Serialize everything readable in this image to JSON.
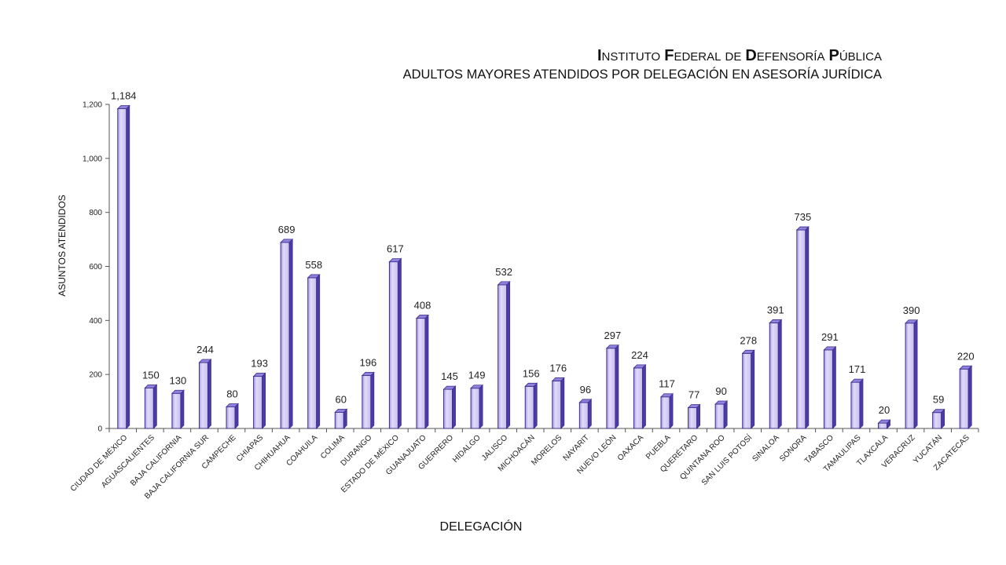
{
  "title_parts": [
    {
      "initial": "I",
      "rest": "NSTITUTO"
    },
    {
      "initial": "F",
      "rest": "EDERAL"
    },
    {
      "initial": "",
      "rest": "DE"
    },
    {
      "initial": "D",
      "rest": "EFENSORÍA"
    },
    {
      "initial": "P",
      "rest": "ÚBLICA"
    }
  ],
  "subtitle": "ADULTOS MAYORES ATENDIDOS POR DELEGACIÓN EN ASESORÍA JURÍDICA",
  "colors": {
    "bar_fill_light": "#d8d0f4",
    "bar_fill_dark": "#9a8fe0",
    "bar_side": "#4c3ba6",
    "bar_top": "#8f82dd",
    "bar_stroke": "#3d2f8f",
    "axis": "#555555"
  },
  "chart_data": {
    "type": "bar",
    "title": "INSTITUTO FEDERAL DE DEFENSORÍA PÚBLICA",
    "subtitle": "ADULTOS MAYORES ATENDIDOS POR DELEGACIÓN EN ASESORÍA JURÍDICA",
    "xlabel": "DELEGACIÓN",
    "ylabel": "ASUNTOS ATENDIDOS",
    "ylim": [
      0,
      1200
    ],
    "yticks": [
      0,
      200,
      400,
      600,
      800,
      1000,
      1200
    ],
    "ytick_labels": [
      "0",
      "200",
      "400",
      "600",
      "800",
      "1,000",
      "1,200"
    ],
    "grid": false,
    "categories": [
      "CIUDAD DE MÉXICO",
      "AGUASCALIENTES",
      "BAJA CALIFORNIA",
      "BAJA CALIFORNIA SUR",
      "CAMPECHE",
      "CHIAPAS",
      "CHIHUAHUA",
      "COAHUILA",
      "COLIMA",
      "DURANGO",
      "ESTADO DE MÉXICO",
      "GUANAJUATO",
      "GUERRERO",
      "HIDALGO",
      "JALISCO",
      "MICHOACÁN",
      "MORELOS",
      "NAYARIT",
      "NUEVO LEÓN",
      "OAXACA",
      "PUEBLA",
      "QUERÉTARO",
      "QUINTANA ROO",
      "SAN LUIS POTOSÍ",
      "SINALOA",
      "SONORA",
      "TABASCO",
      "TAMAULIPAS",
      "TLAXCALA",
      "VERACRUZ",
      "YUCATÁN",
      "ZACATECAS"
    ],
    "values": [
      1184,
      150,
      130,
      244,
      80,
      193,
      689,
      558,
      60,
      196,
      617,
      408,
      145,
      149,
      532,
      156,
      176,
      96,
      297,
      224,
      117,
      77,
      90,
      278,
      391,
      735,
      291,
      171,
      20,
      390,
      59,
      220
    ],
    "value_labels": [
      "1,184",
      "150",
      "130",
      "244",
      "80",
      "193",
      "689",
      "558",
      "60",
      "196",
      "617",
      "408",
      "145",
      "149",
      "532",
      "156",
      "176",
      "96",
      "297",
      "224",
      "117",
      "77",
      "90",
      "278",
      "391",
      "735",
      "291",
      "171",
      "20",
      "390",
      "59",
      "220"
    ]
  }
}
